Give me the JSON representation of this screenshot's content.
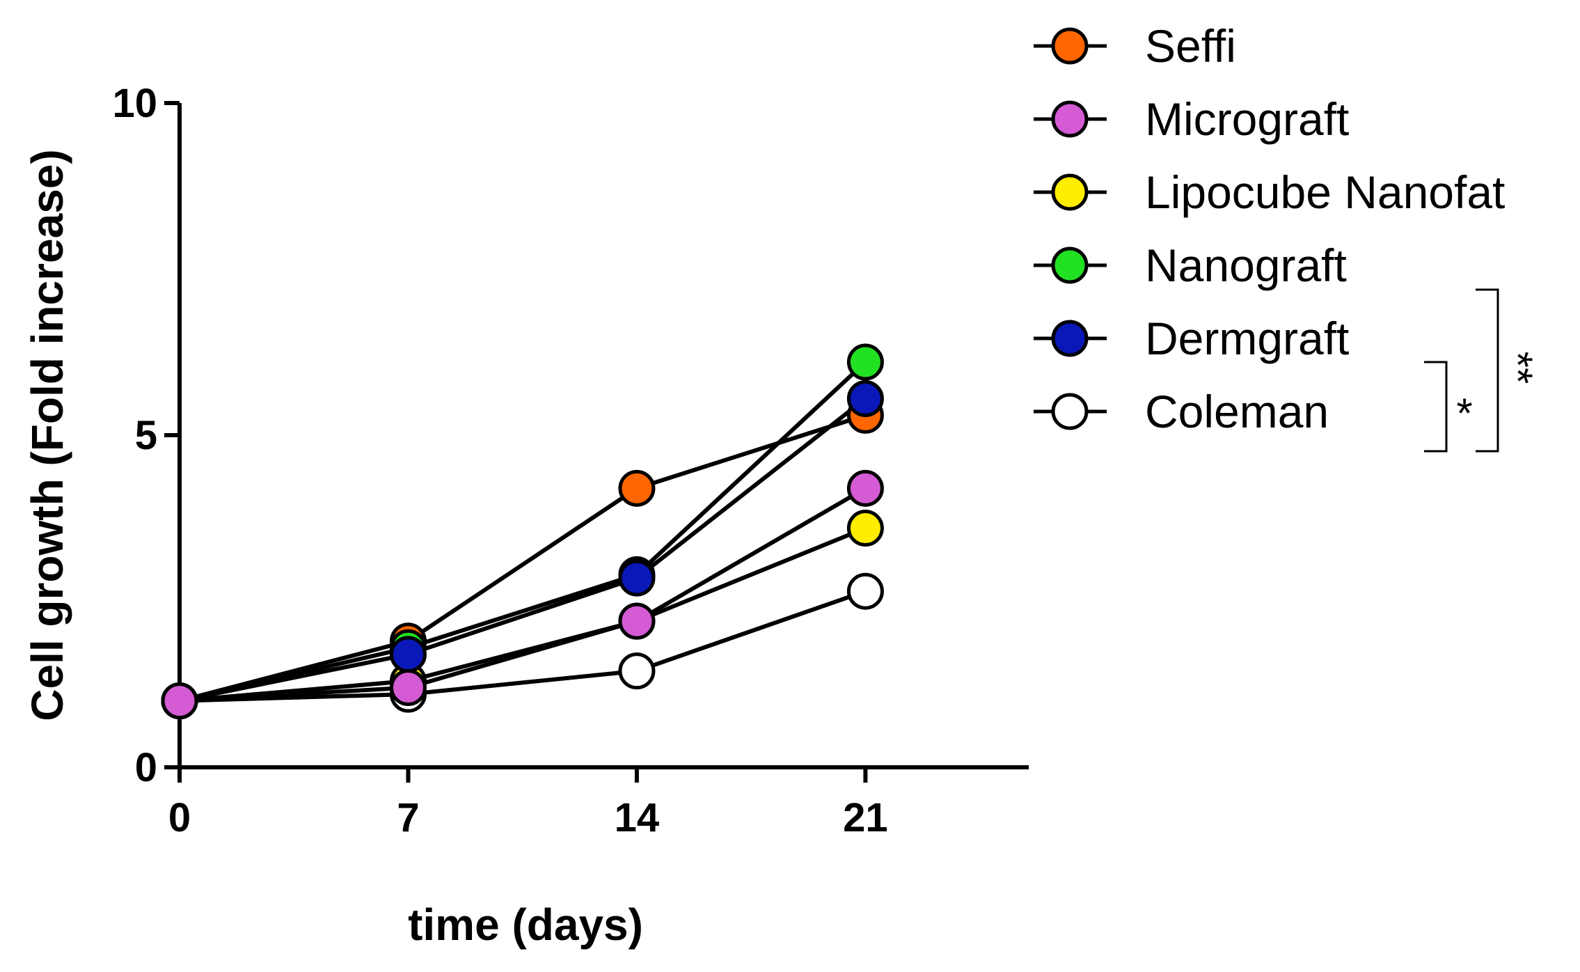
{
  "chart_data": {
    "type": "line",
    "title": "",
    "xlabel": "time (days)",
    "ylabel": "Cell growth (Fold increase)",
    "x": [
      0,
      7,
      14,
      21
    ],
    "xticks": [
      "0",
      "7",
      "14",
      "21"
    ],
    "xlim": [
      0,
      26
    ],
    "yticks": [
      "0",
      "5",
      "10"
    ],
    "ylim": [
      0,
      10
    ],
    "legend_position": "top-right",
    "series": [
      {
        "name": "Seffi",
        "color": "#ff6600",
        "values": [
          1.0,
          1.9,
          4.2,
          5.3
        ]
      },
      {
        "name": "Micrograft",
        "color": "#d45bd4",
        "values": [
          1.0,
          1.2,
          2.2,
          4.2
        ]
      },
      {
        "name": "Lipocube Nanofat",
        "color": "#ffee00",
        "values": [
          1.0,
          1.3,
          2.2,
          3.6
        ]
      },
      {
        "name": "Nanograft",
        "color": "#22e022",
        "values": [
          1.0,
          1.8,
          2.9,
          6.1
        ]
      },
      {
        "name": "Dermgraft",
        "color": "#0a18b8",
        "values": [
          1.0,
          1.7,
          2.85,
          5.55
        ]
      },
      {
        "name": "Coleman",
        "color": "#ffffff",
        "values": [
          1.0,
          1.1,
          1.45,
          2.65
        ]
      }
    ],
    "annotations": [
      {
        "text": "*",
        "between": [
          "Dermgraft",
          "Coleman"
        ]
      },
      {
        "text": "**",
        "between": [
          "Nanograft",
          "Coleman"
        ]
      }
    ]
  }
}
